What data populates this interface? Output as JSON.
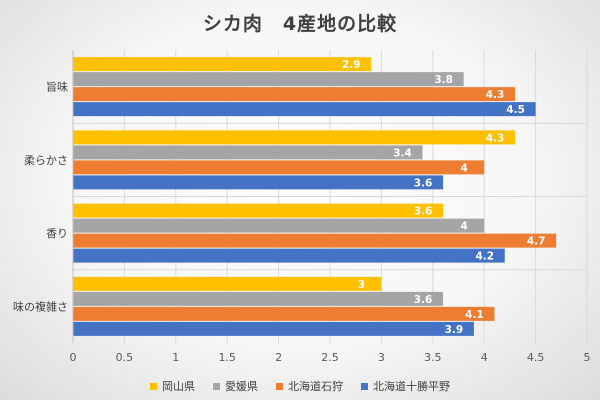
{
  "chart_data": {
    "type": "bar",
    "orientation": "horizontal",
    "title": "シカ肉　4産地の比較",
    "categories": [
      "旨味",
      "柔らかさ",
      "香り",
      "味の複雑さ"
    ],
    "series": [
      {
        "name": "岡山県",
        "color": "#ffc000",
        "values": [
          2.9,
          4.3,
          3.6,
          3
        ]
      },
      {
        "name": "愛媛県",
        "color": "#a5a5a5",
        "values": [
          3.8,
          3.4,
          4,
          3.6
        ]
      },
      {
        "name": "北海道石狩",
        "color": "#ed7d31",
        "values": [
          4.3,
          4,
          4.7,
          4.1
        ]
      },
      {
        "name": "北海道十勝平野",
        "color": "#4472c4",
        "values": [
          4.5,
          3.6,
          4.2,
          3.9
        ]
      }
    ],
    "xlim": [
      0,
      5
    ],
    "xticks": [
      "0",
      "0.5",
      "1",
      "1.5",
      "2",
      "2.5",
      "3",
      "3.5",
      "4",
      "4.5",
      "5"
    ],
    "grid": true,
    "legend": "bottom",
    "data_labels": true
  }
}
